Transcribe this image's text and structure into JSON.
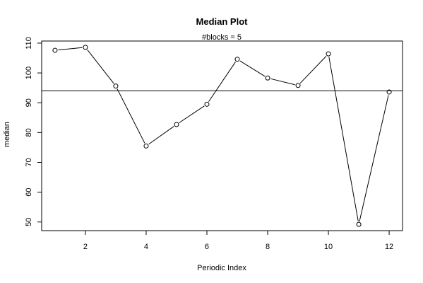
{
  "chart_data": {
    "type": "line",
    "title": "Median Plot",
    "subtitle": "#blocks =  5",
    "xlabel": "Periodic Index",
    "ylabel": "median",
    "x": [
      1,
      2,
      3,
      4,
      5,
      6,
      7,
      8,
      9,
      10,
      11,
      12
    ],
    "values": [
      107.6,
      108.6,
      95.6,
      75.5,
      82.7,
      89.5,
      104.6,
      98.3,
      95.8,
      106.4,
      49.2,
      93.6
    ],
    "reference_line": 94.0,
    "xlim": [
      0.56,
      12.44
    ],
    "ylim": [
      47.1,
      110.7
    ],
    "xticks": [
      2,
      4,
      6,
      8,
      10,
      12
    ],
    "yticks": [
      50,
      60,
      70,
      80,
      90,
      100,
      110
    ],
    "grid": false,
    "marker": "open-circle"
  }
}
